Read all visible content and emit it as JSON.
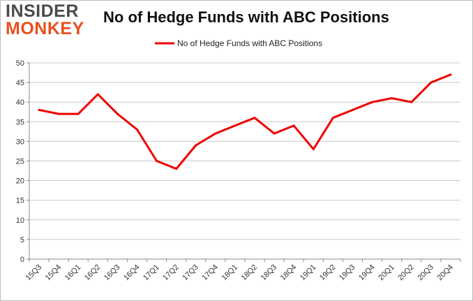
{
  "header": {
    "logo_line1": "INSIDER",
    "logo_line2": "MONKEY",
    "title": "No of Hedge Funds with ABC Positions"
  },
  "chart_data": {
    "type": "line",
    "title": "No of Hedge Funds with ABC Positions",
    "xlabel": "",
    "ylabel": "",
    "categories": [
      "15Q3",
      "15Q4",
      "16Q1",
      "16Q2",
      "16Q3",
      "16Q4",
      "17Q1",
      "17Q2",
      "17Q3",
      "17Q4",
      "18Q1",
      "18Q2",
      "18Q3",
      "18Q4",
      "19Q1",
      "19Q2",
      "19Q3",
      "19Q4",
      "20Q1",
      "20Q2",
      "20Q3",
      "20Q4"
    ],
    "series": [
      {
        "name": "No of Hedge Funds with ABC Positions",
        "color": "#ee0000",
        "values": [
          38,
          37,
          37,
          42,
          37,
          33,
          25,
          23,
          29,
          32,
          34,
          36,
          32,
          34,
          28,
          36,
          38,
          40,
          41,
          40,
          45,
          47
        ]
      }
    ],
    "ylim": [
      0,
      50
    ],
    "yticks": [
      0,
      5,
      10,
      15,
      20,
      25,
      30,
      35,
      40,
      45,
      50
    ],
    "grid": true,
    "legend": "top-center"
  }
}
